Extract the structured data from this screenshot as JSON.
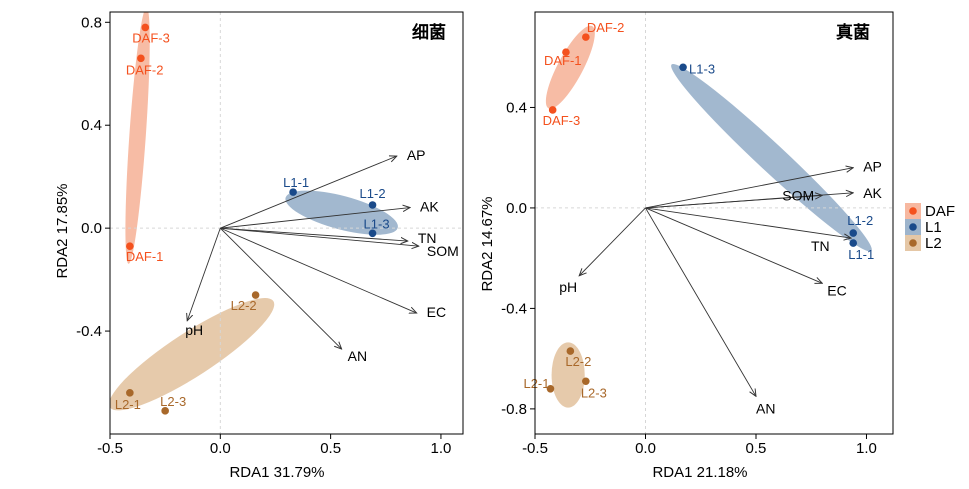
{
  "colors": {
    "DAF": "#f4511e",
    "L1": "#1a4a8a",
    "L2": "#a8682a",
    "DAF_ellipse": "#f7b8a0",
    "L1_ellipse": "#9db4cc",
    "L2_ellipse": "#e5c7a6"
  },
  "legend": {
    "placement": "right",
    "entries": [
      {
        "group": "DAF",
        "label": "DAF"
      },
      {
        "group": "L1",
        "label": "L1"
      },
      {
        "group": "L2",
        "label": "L2"
      }
    ]
  },
  "chart_data": [
    {
      "type": "scatter",
      "title": "细菌",
      "xlabel": "RDA1 31.79%",
      "ylabel": "RDA2 17.85%",
      "xlim": [
        -0.5,
        1.1
      ],
      "ylim": [
        -0.8,
        0.84
      ],
      "xticks": [
        -0.5,
        0.0,
        0.5,
        1.0
      ],
      "xtick_labels": [
        "-0.5",
        "0.0",
        "0.5",
        "1.0"
      ],
      "yticks": [
        -0.4,
        0.0,
        0.4,
        0.8
      ],
      "ytick_labels": [
        "-0.4",
        "0.0",
        "0.4",
        "0.8"
      ],
      "grid": "dashed zero lines",
      "points": [
        {
          "label": "DAF-1",
          "group": "DAF",
          "x": -0.41,
          "y": -0.07
        },
        {
          "label": "DAF-2",
          "group": "DAF",
          "x": -0.36,
          "y": 0.66
        },
        {
          "label": "DAF-3",
          "group": "DAF",
          "x": -0.34,
          "y": 0.78
        },
        {
          "label": "L1-1",
          "group": "L1",
          "x": 0.33,
          "y": 0.14
        },
        {
          "label": "L1-2",
          "group": "L1",
          "x": 0.69,
          "y": 0.09
        },
        {
          "label": "L1-3",
          "group": "L1",
          "x": 0.69,
          "y": -0.02
        },
        {
          "label": "L2-1",
          "group": "L2",
          "x": -0.41,
          "y": -0.64
        },
        {
          "label": "L2-2",
          "group": "L2",
          "x": 0.16,
          "y": -0.26
        },
        {
          "label": "L2-3",
          "group": "L2",
          "x": -0.25,
          "y": -0.71
        }
      ],
      "vectors": [
        {
          "label": "AP",
          "x": 0.8,
          "y": 0.28
        },
        {
          "label": "AK",
          "x": 0.86,
          "y": 0.08
        },
        {
          "label": "TN",
          "x": 0.85,
          "y": -0.05
        },
        {
          "label": "SOM",
          "x": 0.9,
          "y": -0.07
        },
        {
          "label": "EC",
          "x": 0.89,
          "y": -0.33
        },
        {
          "label": "AN",
          "x": 0.55,
          "y": -0.47
        },
        {
          "label": "pH",
          "x": -0.15,
          "y": -0.36
        }
      ]
    },
    {
      "type": "scatter",
      "title": "真菌",
      "xlabel": "RDA1 21.18%",
      "ylabel": "RDA2 14.67%",
      "xlim": [
        -0.5,
        1.12
      ],
      "ylim": [
        -0.9,
        0.78
      ],
      "xticks": [
        -0.5,
        0.0,
        0.5,
        1.0
      ],
      "xtick_labels": [
        "-0.5",
        "0.0",
        "0.5",
        "1.0"
      ],
      "yticks": [
        -0.8,
        -0.4,
        0.0,
        0.4
      ],
      "ytick_labels": [
        "-0.8",
        "-0.4",
        "0.0",
        "0.4"
      ],
      "grid": "dashed zero lines",
      "points": [
        {
          "label": "DAF-1",
          "group": "DAF",
          "x": -0.36,
          "y": 0.62
        },
        {
          "label": "DAF-2",
          "group": "DAF",
          "x": -0.27,
          "y": 0.68
        },
        {
          "label": "DAF-3",
          "group": "DAF",
          "x": -0.42,
          "y": 0.39
        },
        {
          "label": "L1-1",
          "group": "L1",
          "x": 0.94,
          "y": -0.14
        },
        {
          "label": "L1-2",
          "group": "L1",
          "x": 0.94,
          "y": -0.1
        },
        {
          "label": "L1-3",
          "group": "L1",
          "x": 0.17,
          "y": 0.56
        },
        {
          "label": "L2-1",
          "group": "L2",
          "x": -0.43,
          "y": -0.72
        },
        {
          "label": "L2-2",
          "group": "L2",
          "x": -0.34,
          "y": -0.57
        },
        {
          "label": "L2-3",
          "group": "L2",
          "x": -0.27,
          "y": -0.69
        }
      ],
      "vectors": [
        {
          "label": "AP",
          "x": 0.94,
          "y": 0.16
        },
        {
          "label": "AK",
          "x": 0.94,
          "y": 0.06
        },
        {
          "label": "SOM",
          "x": 0.8,
          "y": 0.05
        },
        {
          "label": "TN",
          "x": 0.93,
          "y": -0.12
        },
        {
          "label": "EC",
          "x": 0.8,
          "y": -0.3
        },
        {
          "label": "AN",
          "x": 0.5,
          "y": -0.75
        },
        {
          "label": "pH",
          "x": -0.3,
          "y": -0.27
        }
      ]
    }
  ]
}
